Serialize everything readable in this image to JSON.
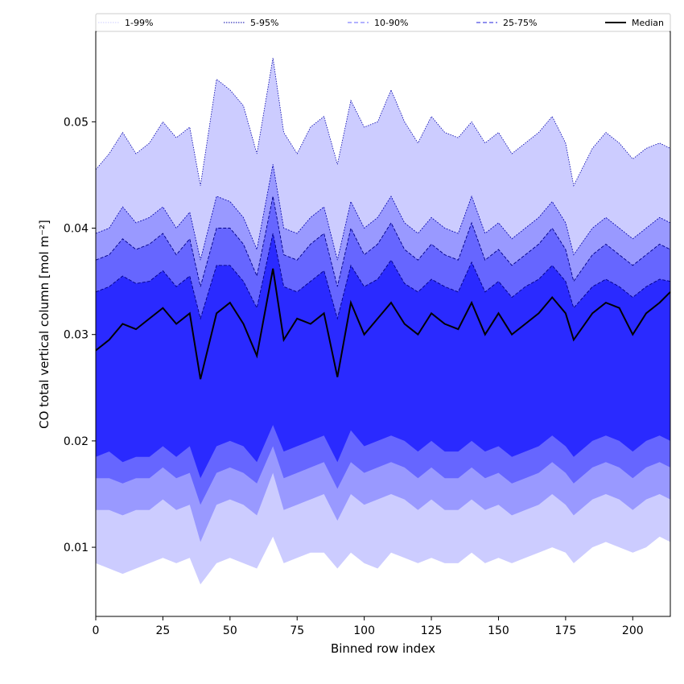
{
  "chart_data": {
    "type": "area",
    "xlabel": "Binned row index",
    "ylabel": "CO total vertical column [mol m⁻²]",
    "xlim": [
      0,
      214
    ],
    "ylim": [
      0.0035,
      0.0585
    ],
    "x_ticks": [
      0,
      25,
      50,
      75,
      100,
      125,
      150,
      175,
      200
    ],
    "x_tick_labels": [
      "0",
      "25",
      "50",
      "75",
      "100",
      "125",
      "150",
      "175",
      "200"
    ],
    "y_ticks": [
      0.01,
      0.02,
      0.03,
      0.04,
      0.05
    ],
    "y_tick_labels": [
      "0.01",
      "0.02",
      "0.03",
      "0.04",
      "0.05"
    ],
    "legend_position": "top",
    "legend": [
      {
        "label": "1-99%",
        "style": "dotted",
        "color": "#ccccff"
      },
      {
        "label": "5-95%",
        "style": "dotted",
        "color": "#0000aa"
      },
      {
        "label": "10-90%",
        "style": "dashed",
        "color": "#6666ff"
      },
      {
        "label": "25-75%",
        "style": "dashed",
        "color": "#2222dd"
      },
      {
        "label": "Median",
        "style": "solid",
        "color": "#000000"
      }
    ],
    "band_colors": {
      "p1_99": "#ccccff",
      "p5_95": "#9999ff",
      "p10_90": "#6666ff",
      "p25_75": "#2a2aff"
    },
    "x": [
      0,
      5,
      10,
      15,
      20,
      25,
      30,
      35,
      39,
      45,
      50,
      55,
      60,
      66,
      70,
      75,
      80,
      85,
      90,
      95,
      100,
      105,
      110,
      115,
      120,
      125,
      130,
      135,
      140,
      145,
      150,
      155,
      160,
      165,
      170,
      175,
      178,
      185,
      190,
      195,
      200,
      205,
      210,
      214
    ],
    "series": [
      {
        "name": "Median",
        "values": [
          0.0285,
          0.0295,
          0.031,
          0.0305,
          0.0315,
          0.0325,
          0.031,
          0.032,
          0.0258,
          0.032,
          0.033,
          0.031,
          0.028,
          0.0362,
          0.0295,
          0.0315,
          0.031,
          0.032,
          0.026,
          0.033,
          0.03,
          0.0315,
          0.033,
          0.031,
          0.03,
          0.032,
          0.031,
          0.0305,
          0.033,
          0.03,
          0.032,
          0.03,
          0.031,
          0.032,
          0.0335,
          0.032,
          0.0295,
          0.032,
          0.033,
          0.0325,
          0.03,
          0.032,
          0.033,
          0.034
        ]
      }
    ],
    "bands": {
      "p99": [
        0.0455,
        0.047,
        0.049,
        0.047,
        0.048,
        0.05,
        0.0485,
        0.0495,
        0.044,
        0.054,
        0.053,
        0.0515,
        0.047,
        0.056,
        0.049,
        0.047,
        0.0495,
        0.0505,
        0.046,
        0.052,
        0.0495,
        0.05,
        0.053,
        0.05,
        0.048,
        0.0505,
        0.049,
        0.0485,
        0.05,
        0.048,
        0.049,
        0.047,
        0.048,
        0.049,
        0.0505,
        0.048,
        0.044,
        0.0475,
        0.049,
        0.048,
        0.0465,
        0.0475,
        0.048,
        0.0475
      ],
      "p95": [
        0.0395,
        0.04,
        0.042,
        0.0405,
        0.041,
        0.042,
        0.04,
        0.0415,
        0.037,
        0.043,
        0.0425,
        0.041,
        0.038,
        0.046,
        0.04,
        0.0395,
        0.041,
        0.042,
        0.037,
        0.0425,
        0.04,
        0.041,
        0.043,
        0.0405,
        0.0395,
        0.041,
        0.04,
        0.0395,
        0.043,
        0.0395,
        0.0405,
        0.039,
        0.04,
        0.041,
        0.0425,
        0.0405,
        0.0375,
        0.04,
        0.041,
        0.04,
        0.039,
        0.04,
        0.041,
        0.0405
      ],
      "p90": [
        0.037,
        0.0375,
        0.039,
        0.038,
        0.0385,
        0.0395,
        0.0375,
        0.039,
        0.0345,
        0.04,
        0.04,
        0.0385,
        0.0355,
        0.043,
        0.0375,
        0.037,
        0.0385,
        0.0395,
        0.0345,
        0.04,
        0.0375,
        0.0385,
        0.0405,
        0.038,
        0.037,
        0.0385,
        0.0375,
        0.037,
        0.0405,
        0.037,
        0.038,
        0.0365,
        0.0375,
        0.0385,
        0.04,
        0.038,
        0.035,
        0.0375,
        0.0385,
        0.0375,
        0.0365,
        0.0375,
        0.0385,
        0.038
      ],
      "p75": [
        0.034,
        0.0345,
        0.0355,
        0.0348,
        0.035,
        0.036,
        0.0345,
        0.0355,
        0.0315,
        0.0365,
        0.0365,
        0.035,
        0.0325,
        0.0395,
        0.0345,
        0.034,
        0.035,
        0.036,
        0.0315,
        0.0365,
        0.0345,
        0.0352,
        0.037,
        0.0348,
        0.034,
        0.0352,
        0.0345,
        0.034,
        0.0368,
        0.034,
        0.035,
        0.0335,
        0.0345,
        0.0352,
        0.0365,
        0.035,
        0.0325,
        0.0345,
        0.0352,
        0.0345,
        0.0335,
        0.0345,
        0.0352,
        0.035
      ],
      "p25": [
        0.0185,
        0.019,
        0.018,
        0.0185,
        0.0185,
        0.0195,
        0.0185,
        0.0195,
        0.0165,
        0.0195,
        0.02,
        0.0195,
        0.018,
        0.0215,
        0.019,
        0.0195,
        0.02,
        0.0205,
        0.018,
        0.021,
        0.0195,
        0.02,
        0.0205,
        0.02,
        0.019,
        0.02,
        0.019,
        0.019,
        0.02,
        0.019,
        0.0195,
        0.0185,
        0.019,
        0.0195,
        0.0205,
        0.0195,
        0.0185,
        0.02,
        0.0205,
        0.02,
        0.019,
        0.02,
        0.0205,
        0.02
      ],
      "p10": [
        0.0165,
        0.0165,
        0.016,
        0.0165,
        0.0165,
        0.0175,
        0.0165,
        0.017,
        0.014,
        0.017,
        0.0175,
        0.017,
        0.016,
        0.0195,
        0.0165,
        0.017,
        0.0175,
        0.018,
        0.0155,
        0.018,
        0.017,
        0.0175,
        0.018,
        0.0175,
        0.0165,
        0.0175,
        0.0165,
        0.0165,
        0.0175,
        0.0165,
        0.017,
        0.016,
        0.0165,
        0.017,
        0.018,
        0.017,
        0.016,
        0.0175,
        0.018,
        0.0175,
        0.0165,
        0.0175,
        0.018,
        0.0175
      ],
      "p5": [
        0.0135,
        0.0135,
        0.013,
        0.0135,
        0.0135,
        0.0145,
        0.0135,
        0.014,
        0.0105,
        0.014,
        0.0145,
        0.014,
        0.013,
        0.017,
        0.0135,
        0.014,
        0.0145,
        0.015,
        0.0125,
        0.015,
        0.014,
        0.0145,
        0.015,
        0.0145,
        0.0135,
        0.0145,
        0.0135,
        0.0135,
        0.0145,
        0.0135,
        0.014,
        0.013,
        0.0135,
        0.014,
        0.015,
        0.014,
        0.013,
        0.0145,
        0.015,
        0.0145,
        0.0135,
        0.0145,
        0.015,
        0.0145
      ],
      "p1": [
        0.0085,
        0.008,
        0.0075,
        0.008,
        0.0085,
        0.009,
        0.0085,
        0.009,
        0.0065,
        0.0085,
        0.009,
        0.0085,
        0.008,
        0.011,
        0.0085,
        0.009,
        0.0095,
        0.0095,
        0.008,
        0.0095,
        0.0085,
        0.008,
        0.0095,
        0.009,
        0.0085,
        0.009,
        0.0085,
        0.0085,
        0.0095,
        0.0085,
        0.009,
        0.0085,
        0.009,
        0.0095,
        0.01,
        0.0095,
        0.0085,
        0.01,
        0.0105,
        0.01,
        0.0095,
        0.01,
        0.011,
        0.0105
      ]
    }
  }
}
